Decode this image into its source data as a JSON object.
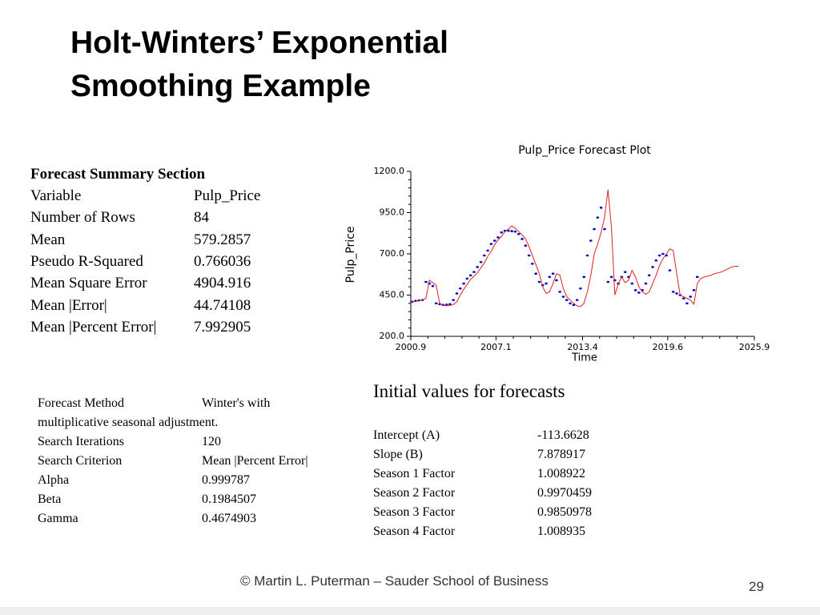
{
  "title_line1": "Holt-Winters’ Exponential",
  "title_line2": "Smoothing Example",
  "summary": {
    "heading": "Forecast Summary Section",
    "rows": [
      [
        "Variable",
        "Pulp_Price"
      ],
      [
        "Number of Rows",
        "84"
      ],
      [
        "Mean",
        "579.2857"
      ],
      [
        "Pseudo R-Squared",
        "0.766036"
      ],
      [
        "Mean Square Error",
        "4904.916"
      ],
      [
        "Mean |Error|",
        "44.74108"
      ],
      [
        "Mean |Percent Error|",
        "7.992905"
      ]
    ]
  },
  "method": {
    "rows": [
      [
        "Forecast Method",
        "Winter's with"
      ]
    ],
    "continuation": "multiplicative seasonal adjustment.",
    "rows2": [
      [
        "Search Iterations",
        "120"
      ],
      [
        "Search Criterion",
        "Mean |Percent Error|"
      ],
      [
        "Alpha",
        "0.999787"
      ],
      [
        "Beta",
        "0.1984507"
      ],
      [
        "Gamma",
        "0.4674903"
      ]
    ]
  },
  "initial": {
    "heading": "Initial values for forecasts",
    "rows": [
      [
        "Intercept (A)",
        "-113.6628"
      ],
      [
        "Slope (B)",
        "7.878917"
      ],
      [
        "Season 1 Factor",
        "1.008922"
      ],
      [
        "Season 2 Factor",
        "0.9970459"
      ],
      [
        "Season 3 Factor",
        "0.9850978"
      ],
      [
        "Season 4 Factor",
        "1.008935"
      ]
    ]
  },
  "footer": "© Martin L. Puterman – Sauder School of Business",
  "page_number": "29",
  "chart_data": {
    "type": "line",
    "title": "Pulp_Price Forecast Plot",
    "x_label": "Time",
    "y_label": "Pulp_Price",
    "xlim": [
      2000.9,
      2025.9
    ],
    "xticks": [
      2000.9,
      2007.1,
      2013.4,
      2019.6,
      2025.9
    ],
    "ylim": [
      200,
      1200
    ],
    "yticks": [
      {
        "value": 200,
        "label": "200.0"
      },
      {
        "value": 450,
        "label": "450.0"
      },
      {
        "value": 700,
        "label": "700.0"
      },
      {
        "value": 950,
        "label": "950.0"
      },
      {
        "value": 1200,
        "label": "1200.0"
      }
    ],
    "series": [
      {
        "name": "Pulp_Price",
        "color": "#0000cc",
        "style": "dots",
        "x": [
          2001.0,
          2001.25,
          2001.5,
          2001.75,
          2002.0,
          2002.25,
          2002.5,
          2002.75,
          2003.0,
          2003.25,
          2003.5,
          2003.75,
          2004.0,
          2004.25,
          2004.5,
          2004.75,
          2005.0,
          2005.25,
          2005.5,
          2005.75,
          2006.0,
          2006.25,
          2006.5,
          2006.75,
          2007.0,
          2007.25,
          2007.5,
          2007.75,
          2008.0,
          2008.25,
          2008.5,
          2008.75,
          2009.0,
          2009.25,
          2009.5,
          2009.75,
          2010.0,
          2010.25,
          2010.5,
          2010.75,
          2011.0,
          2011.25,
          2011.5,
          2011.75,
          2012.0,
          2012.25,
          2012.5,
          2012.75,
          2013.0,
          2013.25,
          2013.5,
          2013.75,
          2014.0,
          2014.25,
          2014.5,
          2014.75,
          2015.0,
          2015.25,
          2015.5,
          2015.75,
          2016.0,
          2016.25,
          2016.5,
          2016.75,
          2017.0,
          2017.25,
          2017.5,
          2017.75,
          2018.0,
          2018.25,
          2018.5,
          2018.75,
          2019.0,
          2019.25,
          2019.5,
          2019.75,
          2020.0,
          2020.25,
          2020.5,
          2020.75,
          2021.0,
          2021.25,
          2021.5,
          2021.75
        ],
        "values": [
          410,
          415,
          418,
          420,
          530,
          520,
          505,
          400,
          395,
          390,
          392,
          395,
          420,
          460,
          490,
          520,
          550,
          570,
          590,
          620,
          650,
          690,
          720,
          760,
          780,
          800,
          830,
          840,
          840,
          838,
          835,
          820,
          790,
          750,
          690,
          640,
          580,
          530,
          510,
          520,
          560,
          580,
          540,
          470,
          440,
          420,
          400,
          390,
          420,
          490,
          560,
          690,
          780,
          850,
          920,
          980,
          850,
          530,
          560,
          540,
          520,
          560,
          590,
          560,
          520,
          480,
          465,
          480,
          520,
          570,
          620,
          660,
          690,
          700,
          690,
          600,
          470,
          460,
          450,
          430,
          400,
          440,
          480,
          560
        ]
      },
      {
        "name": "Forecast",
        "color": "#e02020",
        "style": "line",
        "x": [
          2001.0,
          2001.25,
          2001.5,
          2001.75,
          2002.0,
          2002.25,
          2002.5,
          2002.75,
          2003.0,
          2003.25,
          2003.5,
          2003.75,
          2004.0,
          2004.25,
          2004.5,
          2004.75,
          2005.0,
          2005.25,
          2005.5,
          2005.75,
          2006.0,
          2006.25,
          2006.5,
          2006.75,
          2007.0,
          2007.25,
          2007.5,
          2007.75,
          2008.0,
          2008.25,
          2008.5,
          2008.75,
          2009.0,
          2009.25,
          2009.5,
          2009.75,
          2010.0,
          2010.25,
          2010.5,
          2010.75,
          2011.0,
          2011.25,
          2011.5,
          2011.75,
          2012.0,
          2012.25,
          2012.5,
          2012.75,
          2013.0,
          2013.25,
          2013.5,
          2013.75,
          2014.0,
          2014.25,
          2014.5,
          2014.75,
          2015.0,
          2015.25,
          2015.5,
          2015.75,
          2016.0,
          2016.25,
          2016.5,
          2016.75,
          2017.0,
          2017.25,
          2017.5,
          2017.75,
          2018.0,
          2018.25,
          2018.5,
          2018.75,
          2019.0,
          2019.25,
          2019.5,
          2019.75,
          2020.0,
          2020.25,
          2020.5,
          2020.75,
          2021.0,
          2021.25,
          2021.5,
          2021.75,
          2022.0,
          2022.25,
          2022.5,
          2022.75,
          2023.0,
          2023.25,
          2023.5,
          2023.75,
          2024.0,
          2024.25,
          2024.5,
          2024.75
        ],
        "values": [
          410,
          412,
          416,
          420,
          430,
          540,
          525,
          510,
          400,
          390,
          385,
          388,
          392,
          410,
          450,
          485,
          515,
          545,
          565,
          585,
          615,
          645,
          685,
          715,
          755,
          785,
          805,
          835,
          850,
          870,
          855,
          835,
          815,
          790,
          745,
          690,
          635,
          580,
          500,
          460,
          470,
          520,
          580,
          570,
          490,
          440,
          420,
          400,
          385,
          380,
          400,
          470,
          570,
          700,
          760,
          830,
          920,
          1090,
          860,
          450,
          520,
          560,
          525,
          540,
          600,
          560,
          500,
          470,
          455,
          470,
          520,
          570,
          630,
          670,
          700,
          730,
          720,
          580,
          450,
          440,
          430,
          420,
          395,
          520,
          550,
          560,
          565,
          570,
          580,
          585,
          590,
          600,
          610,
          620,
          625,
          625
        ]
      }
    ]
  }
}
